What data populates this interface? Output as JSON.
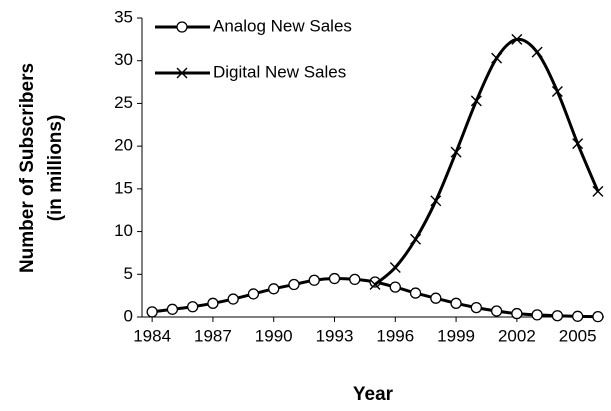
{
  "chart_data": {
    "type": "line",
    "x_label": "Year",
    "y_label": [
      "Number of Subscribers",
      "(in millions)"
    ],
    "x": [
      1984,
      1985,
      1986,
      1987,
      1988,
      1989,
      1990,
      1991,
      1992,
      1993,
      1994,
      1995,
      1996,
      1997,
      1998,
      1999,
      2000,
      2001,
      2002,
      2003,
      2004,
      2005,
      2006
    ],
    "series": [
      {
        "name": "Analog New Sales",
        "color": "#000000",
        "marker": "circle",
        "values": [
          0.6,
          0.9,
          1.2,
          1.6,
          2.1,
          2.7,
          3.3,
          3.8,
          4.3,
          4.5,
          4.4,
          4.1,
          3.5,
          2.8,
          2.2,
          1.6,
          1.1,
          0.7,
          0.4,
          0.25,
          0.15,
          0.08,
          0.04
        ]
      },
      {
        "name": "Digital New Sales",
        "color": "#000000",
        "marker": "x",
        "values": [
          null,
          null,
          null,
          null,
          null,
          null,
          null,
          null,
          null,
          null,
          null,
          3.8,
          5.8,
          9.1,
          13.6,
          19.3,
          25.3,
          30.3,
          32.5,
          31,
          26.4,
          20.3,
          14.7
        ]
      }
    ],
    "xlim": [
      1983.5,
      2006.3
    ],
    "xticks": [
      1984,
      1987,
      1990,
      1993,
      1996,
      1999,
      2002,
      2005
    ],
    "ylim": [
      0,
      35
    ],
    "yticks": [
      0,
      5,
      10,
      15,
      20,
      25,
      30,
      35
    ],
    "legend": "upper left"
  }
}
